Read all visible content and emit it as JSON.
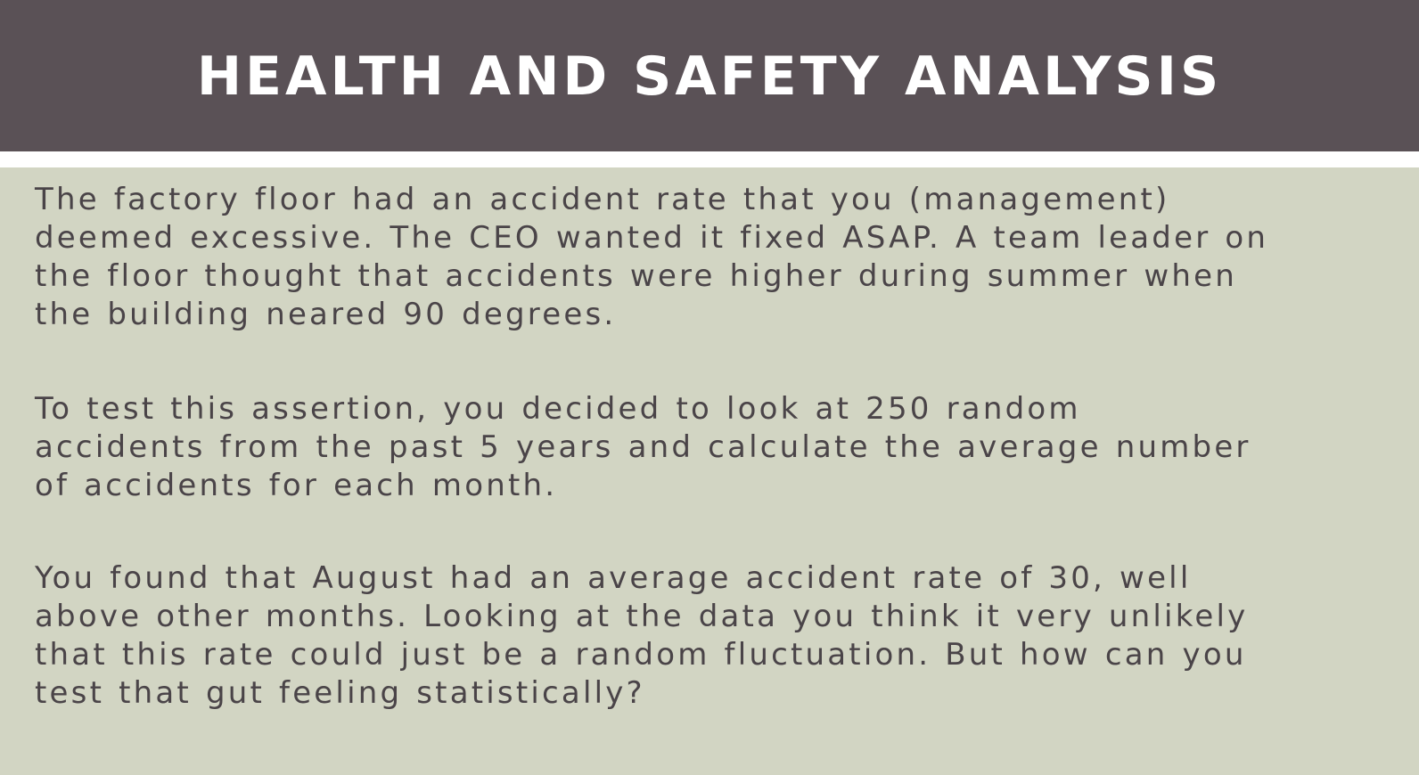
{
  "slide": {
    "title": "HEALTH AND SAFETY ANALYSIS",
    "paragraphs": [
      {
        "lines": [
          "The factory floor had an accident rate that you (management)",
          "deemed excessive. The CEO wanted it fixed ASAP. A team leader on",
          "the floor thought that accidents were higher during summer when",
          "the building neared 90 degrees."
        ]
      },
      {
        "lines": [
          "To test this assertion, you decided to look at 250 random",
          "accidents from the past 5 years and calculate the average number",
          "of accidents for each month."
        ]
      },
      {
        "lines": [
          "You found that August had an average accident rate of 30, well",
          "above other months. Looking at the data you think it very unlikely",
          "that this rate could just be a random fluctuation. But how can you",
          "test that gut feeling statistically?"
        ]
      }
    ]
  },
  "colors": {
    "header_background": "#5a5156",
    "body_background": "#d2d5c3",
    "body_text": "#4a4448",
    "title_text": "#ffffff"
  }
}
